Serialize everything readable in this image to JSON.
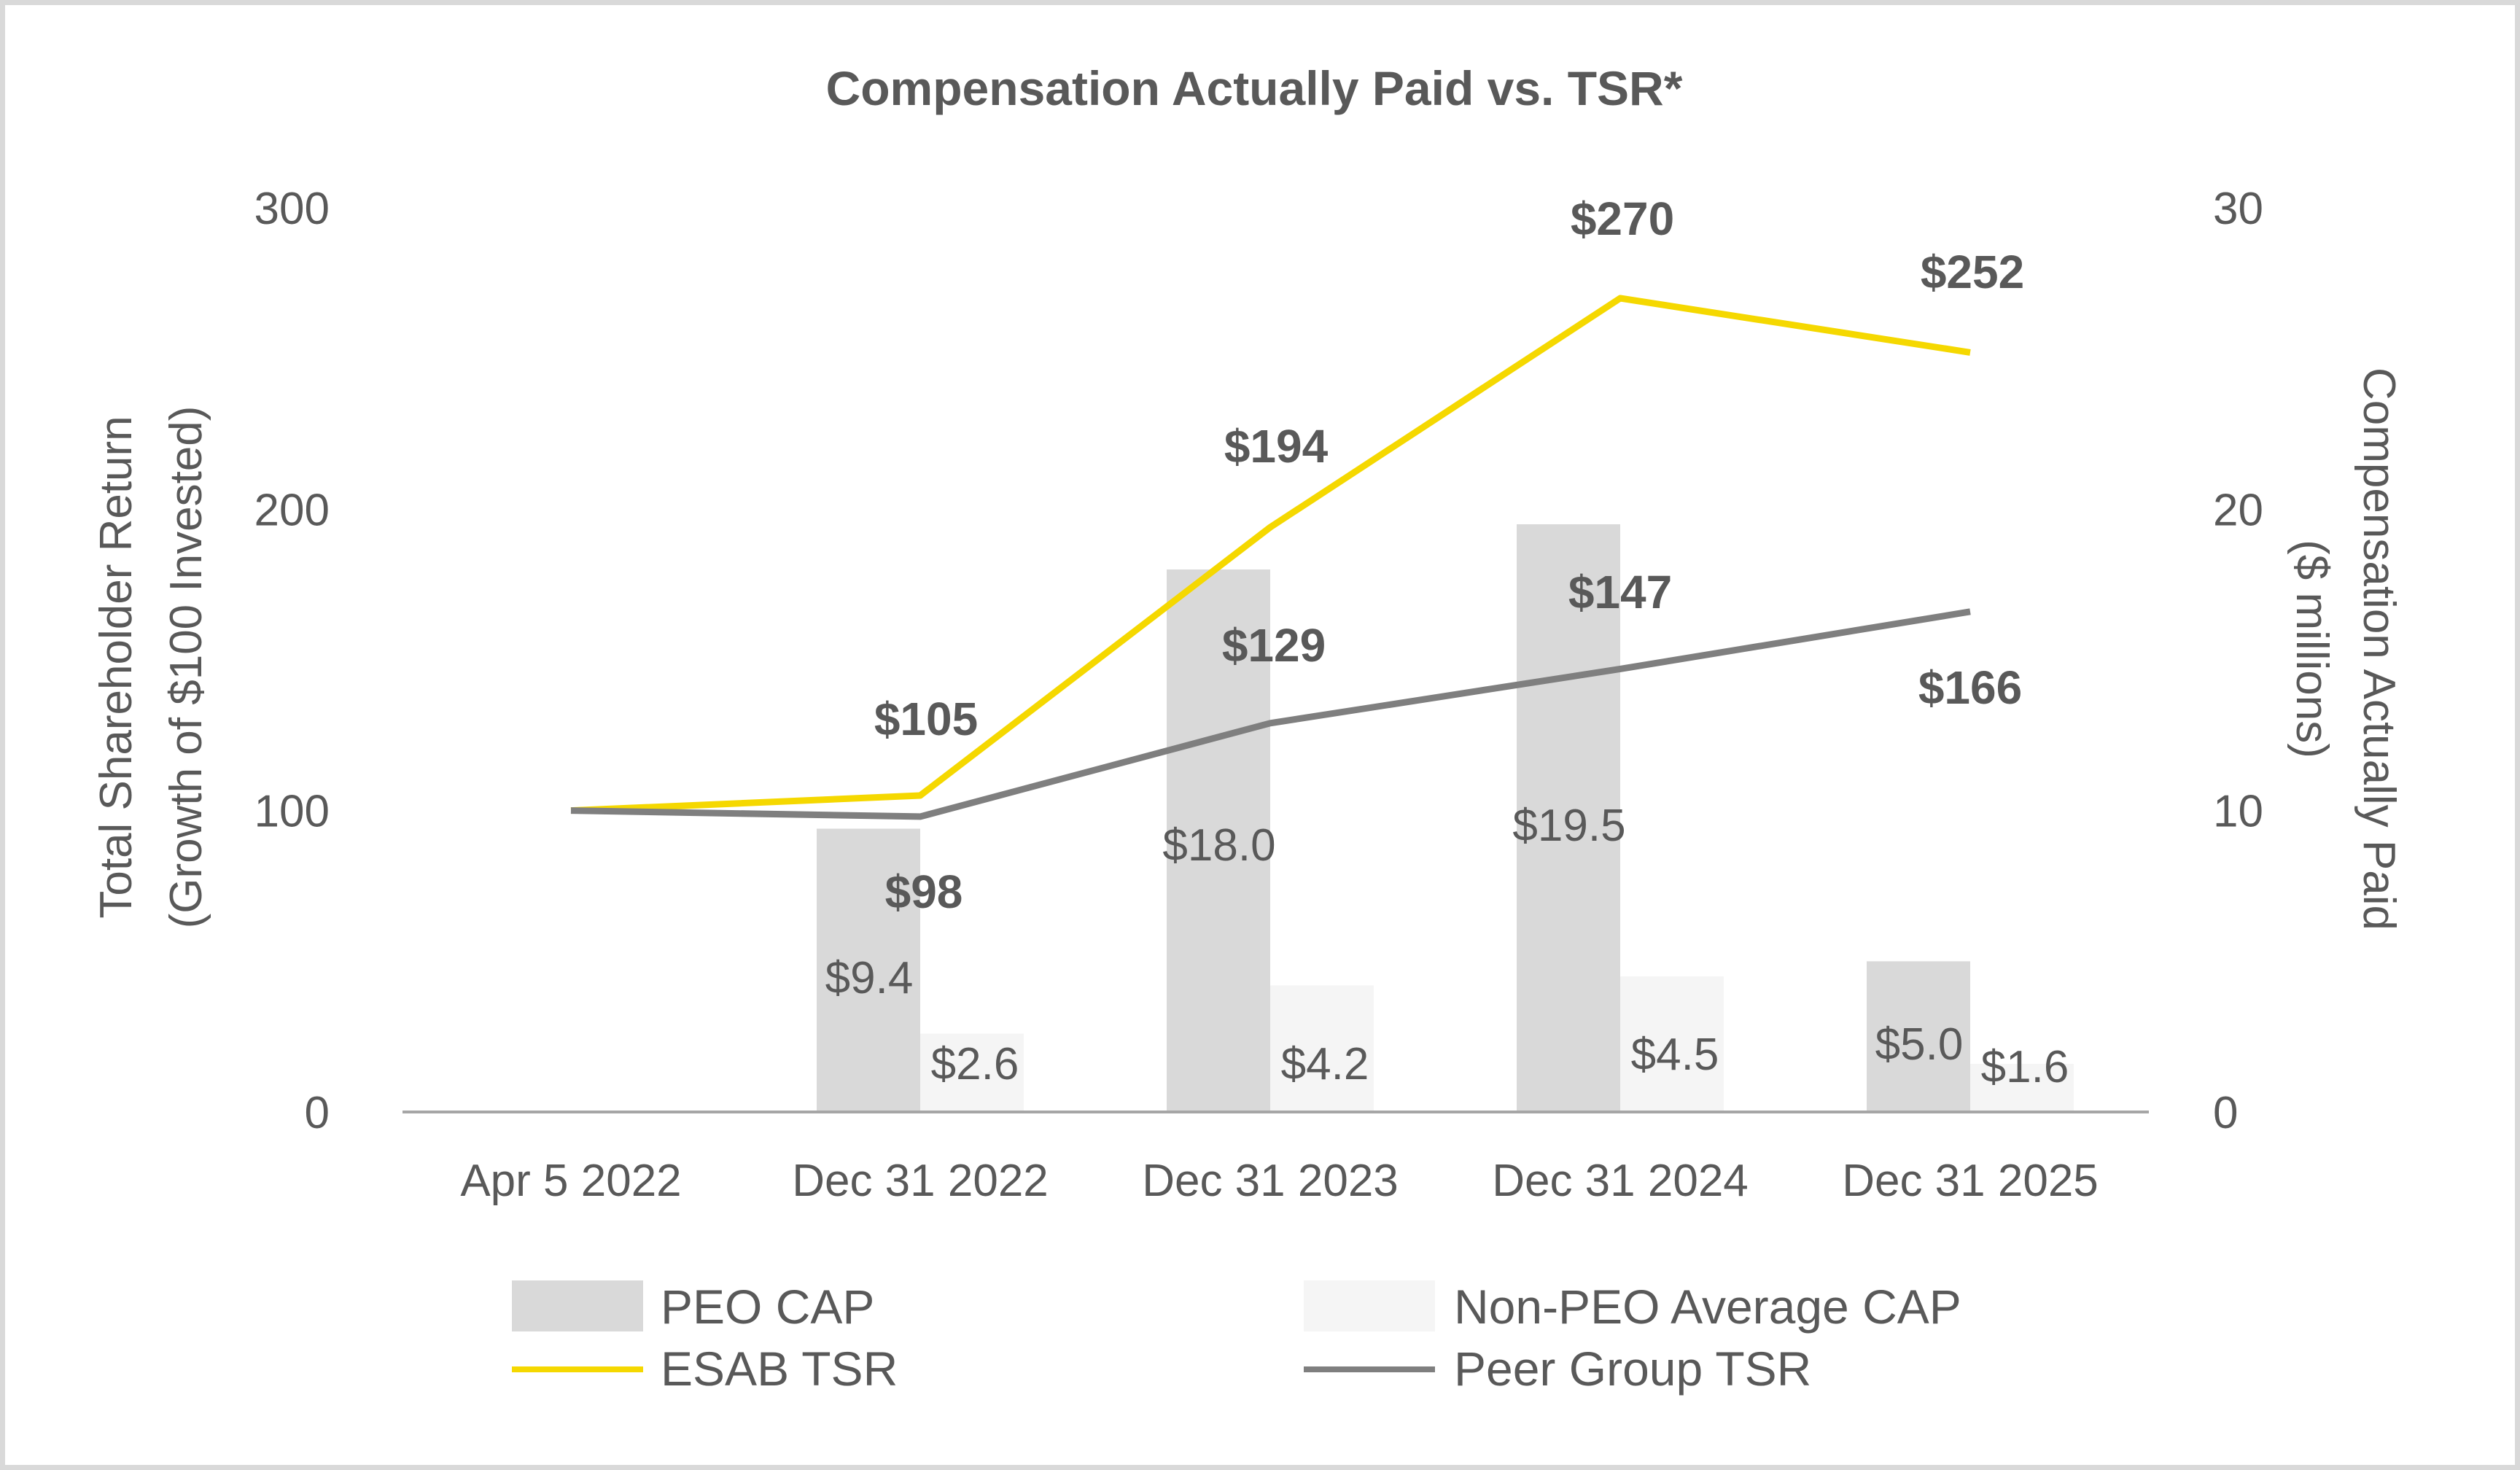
{
  "chart_data": {
    "type": "bar",
    "title": "Compensation Actually Paid vs. TSR*",
    "categories": [
      "Apr 5 2022",
      "Dec 31 2022",
      "Dec 31 2023",
      "Dec 31 2024",
      "Dec 31 2025"
    ],
    "y_left": {
      "label_line1": "Total Shareholder Return",
      "label_line2": "(Growth of $100 Invested)",
      "ticks": [
        "0",
        "100",
        "200",
        "300"
      ],
      "range": [
        0,
        300
      ]
    },
    "y_right": {
      "label_line1": "Compensation Actually Paid",
      "label_line2": "($ millions)",
      "ticks": [
        "0",
        "10",
        "20",
        "30"
      ],
      "range": [
        0,
        30
      ]
    },
    "bar_series": [
      {
        "name": "PEO CAP",
        "color": "#d9d9d9",
        "values": [
          null,
          9.4,
          18.0,
          19.5,
          5.0
        ],
        "labels": [
          "",
          "$9.4",
          "$18.0",
          "$19.5",
          "$5.0"
        ]
      },
      {
        "name": "Non-PEO Average CAP",
        "color": "#f5f5f5",
        "values": [
          null,
          2.6,
          4.2,
          4.5,
          1.6
        ],
        "labels": [
          "",
          "$2.6",
          "$4.2",
          "$4.5",
          "$1.6"
        ]
      }
    ],
    "line_series": [
      {
        "name": "ESAB TSR",
        "color": "#f5d800",
        "values": [
          100,
          105,
          194,
          270,
          252
        ],
        "labels": [
          "",
          "$105",
          "$194",
          "$270",
          "$252"
        ]
      },
      {
        "name": "Peer Group TSR",
        "color": "#7f7f7f",
        "values": [
          100,
          98,
          129,
          147,
          166
        ],
        "labels": [
          "",
          "$98",
          "$129",
          "$147",
          "$166"
        ]
      }
    ],
    "legend_position": "bottom",
    "grid": false
  }
}
